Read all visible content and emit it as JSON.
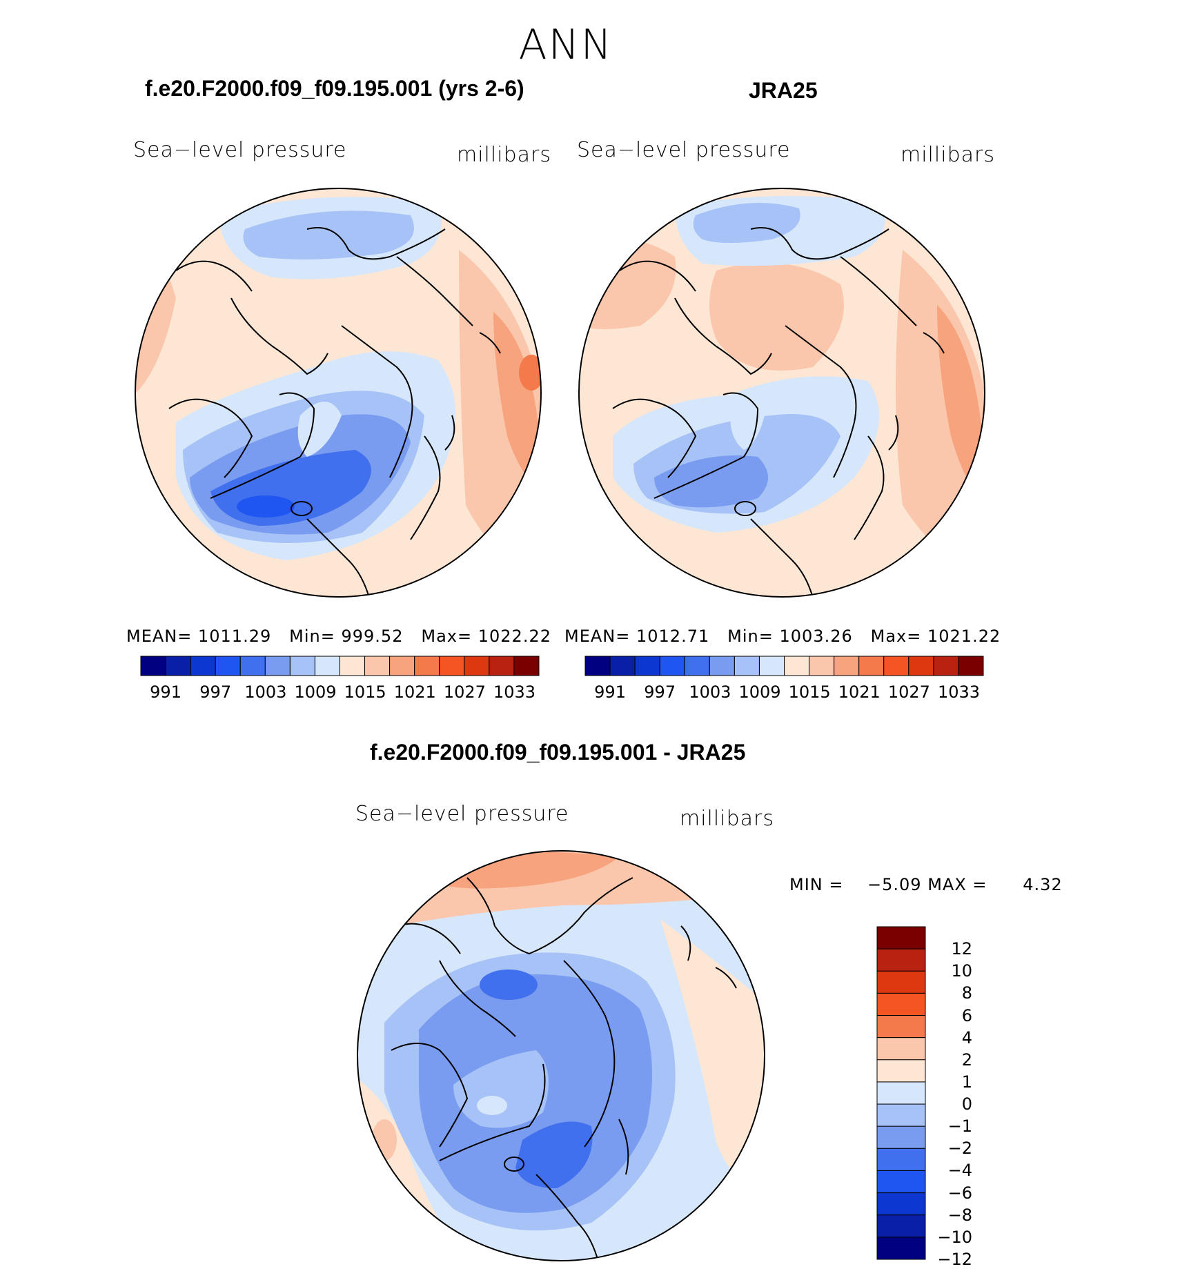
{
  "title": "ANN",
  "panels": [
    {
      "title": "f.e20.F2000.f09_f09.195.001 (yrs 2-6)",
      "left_label": "Sea−level pressure",
      "right_label": "millibars",
      "stats": {
        "mean_label": "MEAN=",
        "mean": "1011.29",
        "min_label": "Min=",
        "min": "999.52",
        "max_label": "Max=",
        "max": "1022.22"
      }
    },
    {
      "title": "JRA25",
      "left_label": "Sea−level pressure",
      "right_label": "millibars",
      "stats": {
        "mean_label": "MEAN=",
        "mean": "1012.71",
        "min_label": "Min=",
        "min": "1003.26",
        "max_label": "Max=",
        "max": "1021.22"
      }
    }
  ],
  "diff_panel": {
    "title": "f.e20.F2000.f09_f09.195.001 - JRA25",
    "left_label": "Sea−level pressure",
    "right_label": "millibars",
    "min_label": "MIN =",
    "min": "−5.09",
    "max_label": "MAX =",
    "max": "4.32"
  },
  "colorbar_horizontal": {
    "colors": [
      "#000080",
      "#0a1fa8",
      "#0c37d0",
      "#1f55f0",
      "#4170ee",
      "#7a9cf0",
      "#a7c2f6",
      "#d6e7fb",
      "#fde6d4",
      "#fbc7ac",
      "#f7a37e",
      "#f47a4c",
      "#f45522",
      "#dd3910",
      "#b92110",
      "#7a0000"
    ],
    "labels": [
      "991",
      "997",
      "1003",
      "1009",
      "1015",
      "1021",
      "1027",
      "1033"
    ]
  },
  "colorbar_vertical": {
    "colors": [
      "#7a0000",
      "#b92110",
      "#dd3910",
      "#f45522",
      "#f47a4c",
      "#fbc7ac",
      "#fde6d4",
      "#d6e7fb",
      "#a7c2f6",
      "#7a9cf0",
      "#4170ee",
      "#1f55f0",
      "#0c37d0",
      "#0a1fa8",
      "#000080"
    ],
    "labels": [
      "12",
      "10",
      "8",
      "6",
      "4",
      "2",
      "1",
      "0",
      "−1",
      "−2",
      "−4",
      "−6",
      "−8",
      "−10",
      "−12"
    ]
  }
}
